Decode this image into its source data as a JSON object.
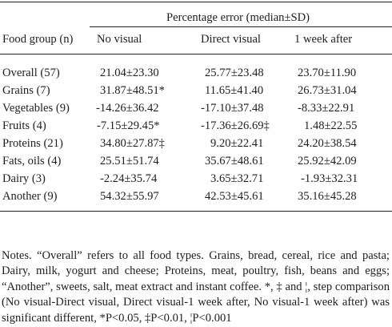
{
  "table": {
    "group_header": "Percentage error (median±SD)",
    "columns": [
      "Food group (n)",
      "No visual",
      "Direct visual",
      "1 week after"
    ],
    "rows": [
      [
        "Overall (57)",
        "21.04±23.30",
        "25.77±23.48",
        "23.70±11.90"
      ],
      [
        "Grains (7)",
        "31.87±48.51*",
        "11.65±41.40",
        "26.73±31.04"
      ],
      [
        "Vegetables (9)",
        "-14.26±36.42",
        "-17.10±37.48",
        "-8.33±22.91"
      ],
      [
        "Fruits (4)",
        "-7.15±29.45*",
        "-17.36±26.69‡",
        "1.48±22.55"
      ],
      [
        "Proteins (21)",
        "34.80±27.87‡",
        "9.20±22.41",
        "24.20±38.54"
      ],
      [
        "Fats, oils (4)",
        "25.51±51.74",
        "35.67±48.61",
        "25.92±42.09"
      ],
      [
        "Dairy (3)",
        "-2.24±35.74",
        "3.65±32.71",
        "-1.93±32.31"
      ],
      [
        "Another (9)",
        "54.32±55.97",
        "42.53±45.61",
        "35.16±45.28"
      ]
    ]
  },
  "notes": "Notes. “Overall” refers to all food types. Grains, bread, cereal, rice and pasta; Dairy, milk, yogurt and cheese; Proteins, meat, poultry, fish, beans and eggs; “Another”, sweets, salt, meat extract and instant coffee. *, ‡ and ¦, step comparison (No visual-Direct visual, Direct visual-1 week after, No visual-1 week after) was significant different, *P<0.05, ‡P<0.01, ¦P<0.001"
}
